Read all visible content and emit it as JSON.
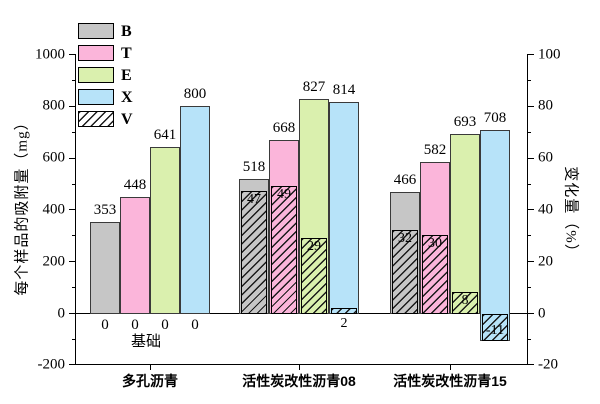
{
  "chart_data": {
    "type": "bar",
    "title": "",
    "left_axis": {
      "label": "每个样品的吸附量（mg）",
      "ticks": [
        1000,
        800,
        600,
        400,
        200,
        0,
        -200
      ],
      "range": [
        -200,
        1000
      ],
      "unit": "mg"
    },
    "right_axis": {
      "label": "变化量（%）",
      "ticks": [
        100,
        80,
        60,
        40,
        20,
        0,
        -20
      ],
      "range": [
        -20,
        100
      ],
      "unit": "%"
    },
    "legend": [
      {
        "name": "B",
        "color": "#c6c6c6",
        "hatch": false
      },
      {
        "name": "T",
        "color": "#fbb5da",
        "hatch": false
      },
      {
        "name": "E",
        "color": "#daf0ae",
        "hatch": false
      },
      {
        "name": "X",
        "color": "#b7e3f9",
        "hatch": false
      },
      {
        "name": "V",
        "color": "#ffffff",
        "hatch": true
      }
    ],
    "series_order": [
      "B",
      "T",
      "E",
      "X"
    ],
    "hatch_series_name": "V",
    "groups": [
      {
        "label": "多孔沥青",
        "baseline_note": "基础",
        "adsorption_mg": [
          353,
          448,
          641,
          800
        ],
        "change_pct": [
          0,
          0,
          0,
          0
        ],
        "zero_labels": [
          "0",
          "0",
          "0",
          "0"
        ]
      },
      {
        "label": "活性炭改性沥青08",
        "adsorption_mg": [
          518,
          668,
          827,
          814
        ],
        "change_pct": [
          47,
          49,
          29,
          2
        ]
      },
      {
        "label": "活性炭改性沥青15",
        "adsorption_mg": [
          466,
          582,
          693,
          708
        ],
        "change_pct": [
          32,
          30,
          8,
          -11
        ]
      }
    ],
    "grid": false,
    "legend_position": "top-left"
  }
}
